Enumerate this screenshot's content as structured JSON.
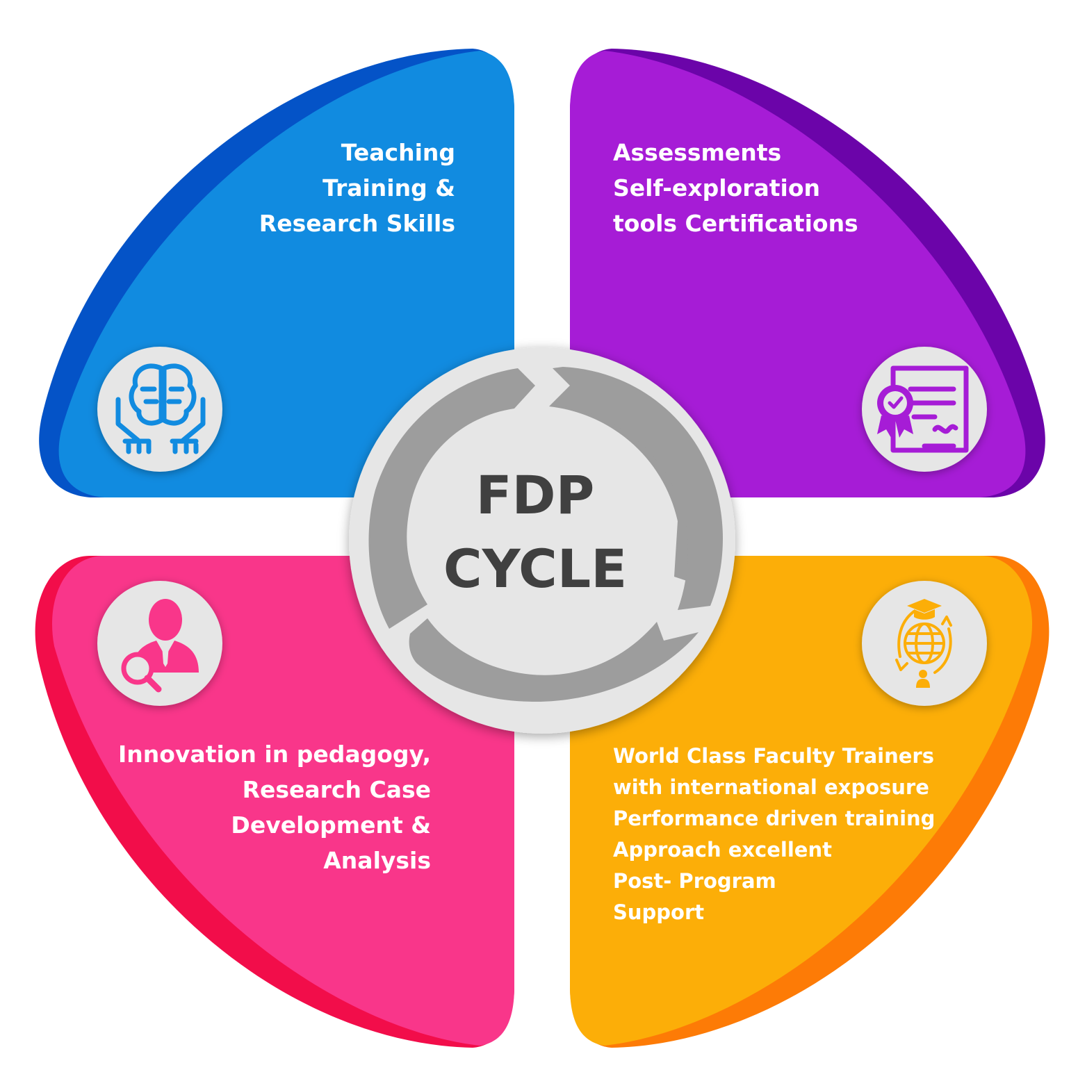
{
  "quadrants": [
    {
      "id": "top-left",
      "lines": [
        "Teaching",
        "Training &",
        "Research Skills"
      ],
      "icon": "brain-hands-icon",
      "color": "#118be0",
      "edge_color": "#0453c7"
    },
    {
      "id": "top-right",
      "lines": [
        "Assessments",
        "Self-exploration",
        "tools Certifications"
      ],
      "icon": "certificate-icon",
      "color": "#a61cd6",
      "edge_color": "#6b04a9"
    },
    {
      "id": "bottom-left",
      "lines": [
        "Innovation in pedagogy,",
        "Research Case",
        "Development &",
        "Analysis"
      ],
      "icon": "person-search-icon",
      "color": "#f9368a",
      "edge_color": "#f20d4a"
    },
    {
      "id": "bottom-right",
      "lines": [
        "World Class Faculty Trainers",
        "with international exposure",
        "Performance driven training",
        "Approach excellent",
        "Post- Program",
        "Support"
      ],
      "icon": "global-education-icon",
      "color": "#fcae08",
      "edge_color": "#fd7b06"
    }
  ],
  "center": {
    "lines": [
      "FDP",
      "CYCLE"
    ],
    "icon": "cycle-arrows-icon",
    "ring_color": "#9d9d9d",
    "disc_color": "#e6e6e6"
  }
}
